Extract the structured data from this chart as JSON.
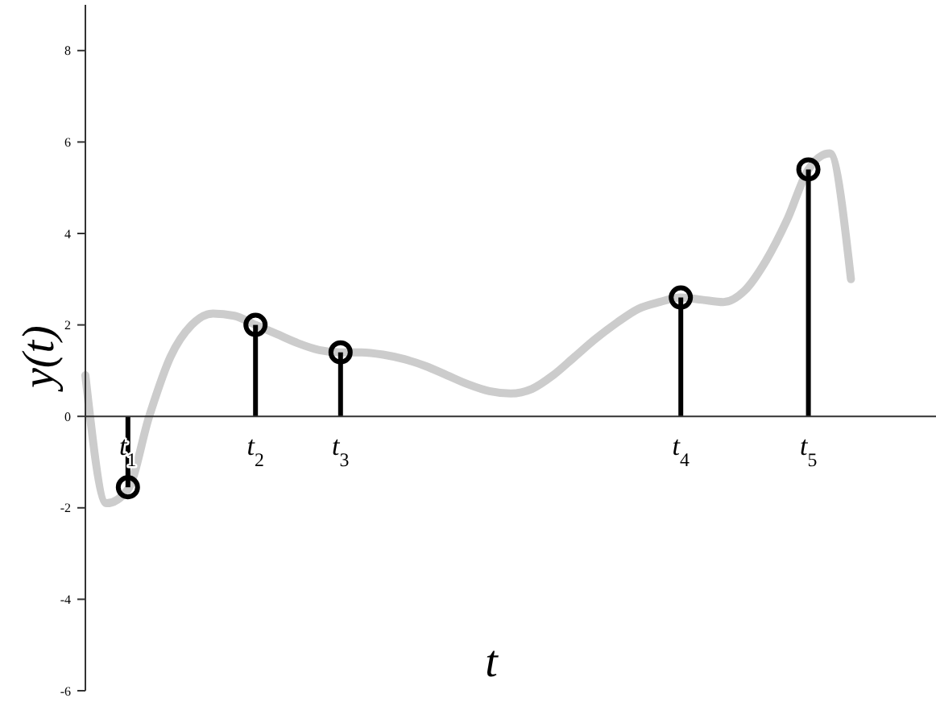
{
  "chart_data": {
    "type": "line",
    "xlabel": "t",
    "ylabel": "y(t)",
    "categories": [
      null,
      null,
      "t$_{1}$",
      null,
      null,
      null,
      null,
      null,
      "t$_{2}$",
      null,
      null,
      null,
      "t$_{3}$",
      null,
      null,
      null,
      null,
      null,
      null,
      null,
      null,
      null,
      null,
      null,
      null,
      null,
      null,
      null,
      "t$_{4}$",
      null,
      null,
      null,
      null,
      null,
      "t$_{5}$",
      null,
      null,
      null,
      null,
      null,
      null
    ],
    "ylim": [
      -6,
      9
    ],
    "yticks": [
      -6,
      -4,
      -2,
      0,
      2,
      4,
      6,
      8
    ],
    "series": [
      {
        "color": "#cccccc",
        "values": [
          0.9,
          -1.9,
          -1.6,
          0,
          1.3,
          2.0,
          2.25,
          2.2,
          2.0,
          1.8,
          1.6,
          1.45,
          1.4,
          1.4,
          1.35,
          1.25,
          1.1,
          0.9,
          0.7,
          0.55,
          0.5,
          0.6,
          0.9,
          1.3,
          1.7,
          2.05,
          2.35,
          2.5,
          2.6,
          2.55,
          2.5,
          2.75,
          3.4,
          4.3,
          5.4,
          5.75,
          3.0,
          null,
          null,
          null,
          null
        ]
      },
      {
        "type": "lollipop",
        "color": "#000000",
        "marker": "circle",
        "values": [
          null,
          null,
          -1.55,
          null,
          null,
          null,
          null,
          null,
          2.0,
          null,
          null,
          null,
          1.4,
          null,
          null,
          null,
          null,
          null,
          null,
          null,
          null,
          null,
          null,
          null,
          null,
          null,
          null,
          null,
          2.6,
          null,
          null,
          null,
          null,
          null,
          5.4,
          null,
          null,
          null,
          null,
          null,
          null
        ]
      }
    ]
  }
}
